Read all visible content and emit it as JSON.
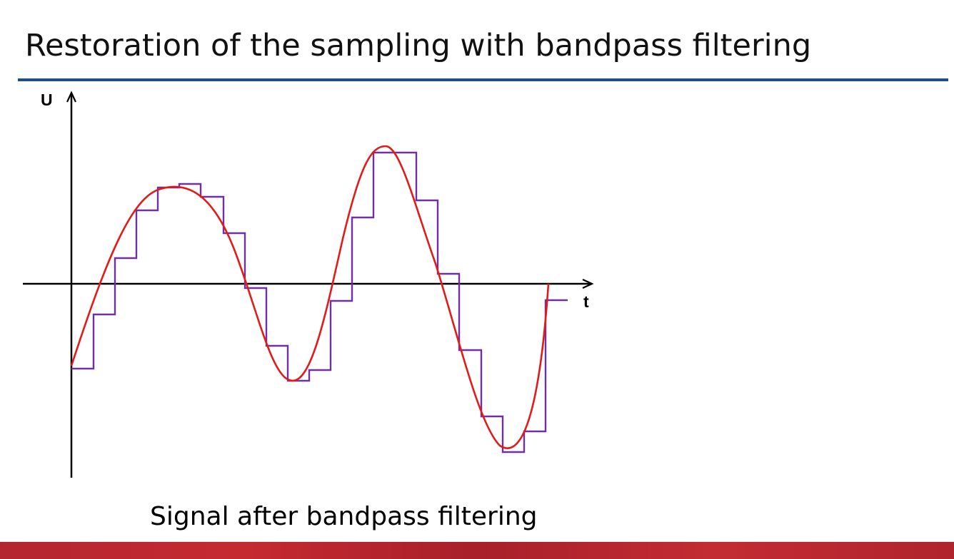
{
  "slide": {
    "title": "Restoration of the sampling with bandpass filtering",
    "caption": "Signal after bandpass filtering",
    "colors": {
      "title_rule": "#1f4e86",
      "footer_band": "#b32630"
    }
  },
  "diagram": {
    "y_axis_label": "U",
    "x_axis_label": "t",
    "colors": {
      "axes": "#000000",
      "staircase": "#7030a0",
      "curve": "#e11a1a"
    }
  }
}
